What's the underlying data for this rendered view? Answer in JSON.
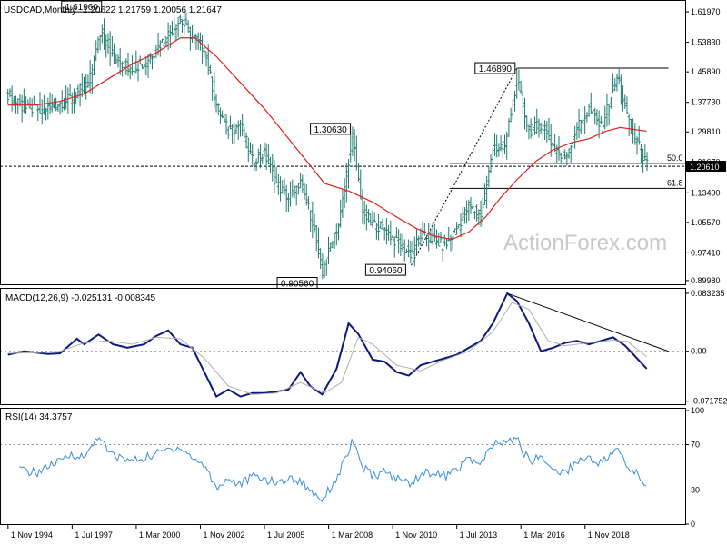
{
  "header": {
    "symbol": "USDCAD,Monthly",
    "ohlc": "1.20622 1.21759 1.20056 1.21647"
  },
  "watermark": "ActionForex.com",
  "colors": {
    "bars": "#1e7a6e",
    "sma": "#e02020",
    "macd": "#0a1a7a",
    "signal": "#b0b0b0",
    "rsi": "#3a8fd8",
    "grid": "#909090",
    "trend": "#000000"
  },
  "chart_data": [
    {
      "type": "bar",
      "title": "USDCAD,Monthly",
      "x_labels": [
        "1 Nov 1994",
        "1 Jul 1997",
        "1 Mar 2000",
        "1 Nov 2002",
        "1 Jul 2005",
        "1 Mar 2008",
        "1 Nov 2010",
        "1 Jul 2013",
        "1 Mar 2016",
        "1 Nov 2018"
      ],
      "ylim": [
        0.8898,
        1.6467
      ],
      "y_ticks": [
        "1.61970",
        "1.53830",
        "1.45890",
        "1.37730",
        "1.29810",
        "1.21670",
        "1.13490",
        "1.05570",
        "0.97410",
        "0.89980"
      ],
      "last_price": "1.20610",
      "price_path": [
        [
          1994.83,
          1.4
        ],
        [
          1995.5,
          1.36
        ],
        [
          1996.5,
          1.36
        ],
        [
          1997.5,
          1.39
        ],
        [
          1998.2,
          1.43
        ],
        [
          1998.7,
          1.57
        ],
        [
          1999.3,
          1.49
        ],
        [
          1999.8,
          1.47
        ],
        [
          2000.5,
          1.48
        ],
        [
          2001.0,
          1.52
        ],
        [
          2001.5,
          1.56
        ],
        [
          2002.0,
          1.6
        ],
        [
          2002.5,
          1.55
        ],
        [
          2003.0,
          1.52
        ],
        [
          2003.5,
          1.37
        ],
        [
          2004.0,
          1.3
        ],
        [
          2004.5,
          1.32
        ],
        [
          2005.0,
          1.22
        ],
        [
          2005.5,
          1.24
        ],
        [
          2006.0,
          1.16
        ],
        [
          2006.5,
          1.12
        ],
        [
          2007.0,
          1.16
        ],
        [
          2007.5,
          1.06
        ],
        [
          2007.92,
          0.91
        ],
        [
          2008.3,
          1.01
        ],
        [
          2008.6,
          1.05
        ],
        [
          2009.15,
          1.29
        ],
        [
          2009.6,
          1.08
        ],
        [
          2010.0,
          1.05
        ],
        [
          2010.5,
          1.04
        ],
        [
          2011.0,
          1.0
        ],
        [
          2011.6,
          0.97
        ],
        [
          2012.0,
          1.02
        ],
        [
          2012.5,
          1.01
        ],
        [
          2013.0,
          0.99
        ],
        [
          2013.5,
          1.04
        ],
        [
          2014.0,
          1.1
        ],
        [
          2014.5,
          1.07
        ],
        [
          2015.0,
          1.25
        ],
        [
          2015.5,
          1.26
        ],
        [
          2016.0,
          1.44
        ],
        [
          2016.5,
          1.3
        ],
        [
          2017.0,
          1.32
        ],
        [
          2017.5,
          1.26
        ],
        [
          2018.0,
          1.23
        ],
        [
          2018.5,
          1.31
        ],
        [
          2019.0,
          1.36
        ],
        [
          2019.5,
          1.31
        ],
        [
          2020.2,
          1.45
        ],
        [
          2020.6,
          1.33
        ],
        [
          2021.0,
          1.27
        ],
        [
          2021.4,
          1.21
        ]
      ],
      "series": [
        {
          "name": "",
          "values_ref": "price_path"
        }
      ],
      "sma_path": [
        [
          1994.83,
          1.37
        ],
        [
          1996.0,
          1.37
        ],
        [
          1997.0,
          1.38
        ],
        [
          1998.0,
          1.4
        ],
        [
          1999.0,
          1.44
        ],
        [
          2000.0,
          1.48
        ],
        [
          2001.0,
          1.51
        ],
        [
          2002.0,
          1.55
        ],
        [
          2002.6,
          1.55
        ],
        [
          2003.5,
          1.5
        ],
        [
          2004.5,
          1.43
        ],
        [
          2005.5,
          1.36
        ],
        [
          2006.5,
          1.28
        ],
        [
          2007.5,
          1.2
        ],
        [
          2008.0,
          1.16
        ],
        [
          2009.0,
          1.14
        ],
        [
          2010.0,
          1.11
        ],
        [
          2011.0,
          1.07
        ],
        [
          2011.8,
          1.04
        ],
        [
          2012.5,
          1.02
        ],
        [
          2013.3,
          1.01
        ],
        [
          2014.0,
          1.03
        ],
        [
          2014.7,
          1.07
        ],
        [
          2015.3,
          1.12
        ],
        [
          2016.0,
          1.17
        ],
        [
          2016.8,
          1.22
        ],
        [
          2017.5,
          1.25
        ],
        [
          2018.3,
          1.27
        ],
        [
          2019.0,
          1.28
        ],
        [
          2019.7,
          1.3
        ],
        [
          2020.3,
          1.31
        ],
        [
          2021.4,
          1.3
        ]
      ],
      "annotations": [
        {
          "text": "1.61960",
          "x": 1998.8,
          "y": 1.6196
        },
        {
          "text": "1.30630",
          "x": 2009.15,
          "y": 1.3063
        },
        {
          "text": "0.90560",
          "x": 2007.92,
          "y": 0.9056
        },
        {
          "text": "0.94060",
          "x": 2011.6,
          "y": 0.9406
        },
        {
          "text": "1.46890",
          "x": 2016.0,
          "y": 1.4689
        }
      ],
      "levels": [
        {
          "label": "50.0",
          "y": 1.2138
        },
        {
          "label": "61.8",
          "y": 1.1469
        },
        {
          "label": "",
          "y": 1.4689
        }
      ]
    },
    {
      "type": "line",
      "title": "MACD(12,26,9) -0.025131 -0.008345",
      "ylim": [
        -0.076,
        0.087
      ],
      "y_ticks": [
        "0.083235",
        "0.00",
        "-0.071752"
      ],
      "series": [
        {
          "name": "MACD",
          "points": [
            [
              1994.83,
              -0.005
            ],
            [
              1995.5,
              0.0
            ],
            [
              1996.5,
              -0.004
            ],
            [
              1997.0,
              -0.003
            ],
            [
              1997.7,
              0.018
            ],
            [
              1998.0,
              0.01
            ],
            [
              1998.6,
              0.024
            ],
            [
              1999.2,
              0.01
            ],
            [
              1999.8,
              0.005
            ],
            [
              2000.5,
              0.01
            ],
            [
              2001.0,
              0.022
            ],
            [
              2001.5,
              0.03
            ],
            [
              2002.0,
              0.01
            ],
            [
              2002.5,
              0.005
            ],
            [
              2003.0,
              -0.03
            ],
            [
              2003.5,
              -0.065
            ],
            [
              2004.0,
              -0.055
            ],
            [
              2004.5,
              -0.065
            ],
            [
              2005.0,
              -0.06
            ],
            [
              2005.5,
              -0.06
            ],
            [
              2006.0,
              -0.058
            ],
            [
              2006.5,
              -0.055
            ],
            [
              2007.0,
              -0.03
            ],
            [
              2007.4,
              -0.05
            ],
            [
              2007.9,
              -0.062
            ],
            [
              2008.5,
              -0.025
            ],
            [
              2009.0,
              0.04
            ],
            [
              2009.4,
              0.025
            ],
            [
              2010.0,
              -0.012
            ],
            [
              2010.5,
              -0.015
            ],
            [
              2011.0,
              -0.03
            ],
            [
              2011.5,
              -0.035
            ],
            [
              2012.0,
              -0.02
            ],
            [
              2012.5,
              -0.015
            ],
            [
              2013.0,
              -0.01
            ],
            [
              2013.5,
              -0.005
            ],
            [
              2014.0,
              0.005
            ],
            [
              2014.5,
              0.015
            ],
            [
              2015.0,
              0.04
            ],
            [
              2015.6,
              0.083
            ],
            [
              2016.0,
              0.072
            ],
            [
              2016.5,
              0.04
            ],
            [
              2017.0,
              0.0
            ],
            [
              2017.5,
              0.005
            ],
            [
              2018.0,
              0.012
            ],
            [
              2018.5,
              0.015
            ],
            [
              2019.0,
              0.01
            ],
            [
              2019.5,
              0.015
            ],
            [
              2020.0,
              0.02
            ],
            [
              2020.5,
              0.008
            ],
            [
              2021.4,
              -0.025
            ]
          ]
        },
        {
          "name": "Signal",
          "points": [
            [
              1994.83,
              -0.003
            ],
            [
              1996.0,
              -0.002
            ],
            [
              1997.0,
              0.0
            ],
            [
              1998.0,
              0.012
            ],
            [
              1999.0,
              0.015
            ],
            [
              2000.0,
              0.01
            ],
            [
              2001.0,
              0.02
            ],
            [
              2002.0,
              0.018
            ],
            [
              2003.0,
              -0.01
            ],
            [
              2004.0,
              -0.05
            ],
            [
              2005.0,
              -0.062
            ],
            [
              2006.0,
              -0.06
            ],
            [
              2007.0,
              -0.045
            ],
            [
              2008.0,
              -0.06
            ],
            [
              2008.7,
              -0.045
            ],
            [
              2009.4,
              0.02
            ],
            [
              2010.0,
              0.01
            ],
            [
              2011.0,
              -0.02
            ],
            [
              2012.0,
              -0.028
            ],
            [
              2013.0,
              -0.012
            ],
            [
              2014.0,
              0.0
            ],
            [
              2015.0,
              0.028
            ],
            [
              2015.8,
              0.07
            ],
            [
              2016.5,
              0.06
            ],
            [
              2017.3,
              0.015
            ],
            [
              2018.0,
              0.008
            ],
            [
              2019.0,
              0.012
            ],
            [
              2020.0,
              0.016
            ],
            [
              2020.6,
              0.014
            ],
            [
              2021.4,
              -0.008
            ]
          ]
        }
      ]
    },
    {
      "type": "line",
      "title": "RSI(14) 34.3757",
      "ylim": [
        0,
        100
      ],
      "y_ticks": [
        "100",
        "70",
        "30",
        "0"
      ],
      "series": [
        {
          "name": "RSI",
          "points": [
            [
              1995.3,
              48
            ],
            [
              1996.0,
              45
            ],
            [
              1996.6,
              52
            ],
            [
              1997.0,
              55
            ],
            [
              1997.5,
              62
            ],
            [
              1998.0,
              58
            ],
            [
              1998.6,
              79
            ],
            [
              1999.0,
              63
            ],
            [
              1999.5,
              58
            ],
            [
              2000.0,
              56
            ],
            [
              2000.5,
              58
            ],
            [
              2001.0,
              62
            ],
            [
              2001.5,
              66
            ],
            [
              2002.0,
              68
            ],
            [
              2002.5,
              58
            ],
            [
              2003.0,
              52
            ],
            [
              2003.5,
              32
            ],
            [
              2004.0,
              40
            ],
            [
              2004.5,
              35
            ],
            [
              2005.0,
              42
            ],
            [
              2005.5,
              40
            ],
            [
              2006.0,
              36
            ],
            [
              2006.5,
              40
            ],
            [
              2007.0,
              38
            ],
            [
              2007.5,
              28
            ],
            [
              2007.9,
              22
            ],
            [
              2008.5,
              40
            ],
            [
              2009.15,
              72
            ],
            [
              2009.6,
              50
            ],
            [
              2010.0,
              42
            ],
            [
              2010.5,
              46
            ],
            [
              2011.0,
              40
            ],
            [
              2011.6,
              36
            ],
            [
              2012.0,
              44
            ],
            [
              2012.5,
              46
            ],
            [
              2013.0,
              42
            ],
            [
              2013.5,
              48
            ],
            [
              2014.0,
              58
            ],
            [
              2014.5,
              52
            ],
            [
              2015.0,
              70
            ],
            [
              2015.5,
              72
            ],
            [
              2016.0,
              75
            ],
            [
              2016.5,
              55
            ],
            [
              2017.0,
              60
            ],
            [
              2017.5,
              48
            ],
            [
              2018.0,
              45
            ],
            [
              2018.5,
              56
            ],
            [
              2019.0,
              58
            ],
            [
              2019.5,
              54
            ],
            [
              2020.2,
              66
            ],
            [
              2020.6,
              50
            ],
            [
              2021.0,
              44
            ],
            [
              2021.4,
              34
            ]
          ]
        }
      ]
    }
  ]
}
